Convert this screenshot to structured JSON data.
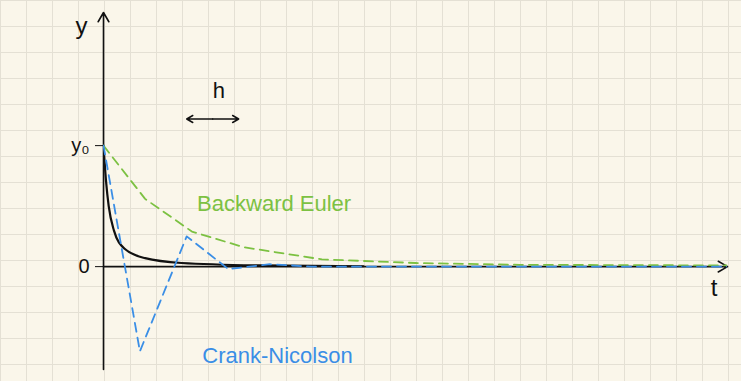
{
  "chart_data": {
    "type": "line",
    "xlabel": "t",
    "ylabel": "y",
    "xlim": [
      0,
      12
    ],
    "ylim": [
      -0.85,
      2.1
    ],
    "yticks": [
      0,
      {
        "value": 1,
        "label": "y₀"
      }
    ],
    "tick_labels": "y",
    "series": [
      {
        "color": "#111111",
        "line_style": "solid",
        "x": [
          0,
          0.05,
          0.1,
          0.2,
          0.4,
          0.8,
          1.5,
          3,
          5
        ],
        "values": [
          1,
          0.7,
          0.5,
          0.3,
          0.15,
          0.07,
          0.03,
          0.01,
          0.003
        ]
      },
      {
        "color": "#7cc142",
        "line_style": "dashed",
        "x": [
          0,
          0.8,
          1.7,
          2.7,
          4.2,
          6,
          8,
          12
        ],
        "values": [
          1,
          0.56,
          0.29,
          0.16,
          0.06,
          0.03,
          0.015,
          0.01
        ]
      },
      {
        "color": "#3a8ee6",
        "line_style": "dashed",
        "x": [
          0,
          0.7,
          1.6,
          2.4,
          3.2,
          4,
          12
        ],
        "values": [
          1,
          -0.7,
          0.25,
          -0.02,
          0.02,
          0,
          0
        ]
      }
    ],
    "annotations": [
      {
        "text": "Backward Euler",
        "x": 1.8,
        "y": 0.52,
        "color": "#7cc142"
      },
      {
        "text": "Crank-Nicolson",
        "x": 1.9,
        "y": -0.74,
        "color": "#3a8ee6"
      },
      {
        "text": "h",
        "x": 2.1,
        "y": 1.45,
        "color": "#111111",
        "arrow": {
          "x": [
            1.6,
            2.6
          ],
          "y": 1.22
        }
      }
    ]
  }
}
